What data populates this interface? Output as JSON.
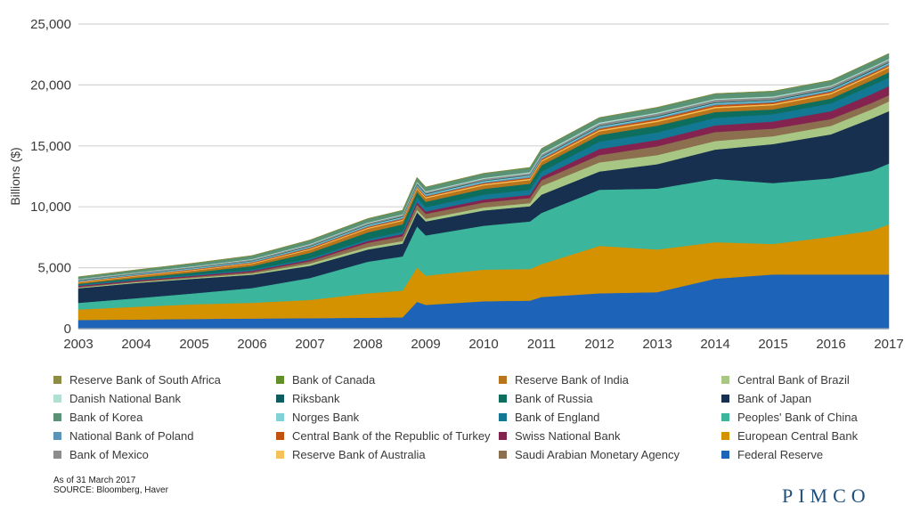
{
  "chart_data": {
    "type": "area",
    "stacked": true,
    "title": "",
    "xlabel": "",
    "ylabel": "Billions ($)",
    "ylim": [
      0,
      25000
    ],
    "yticks": [
      0,
      5000,
      10000,
      15000,
      20000,
      25000
    ],
    "ytick_labels": [
      "0",
      "5,000",
      "10,000",
      "15,000",
      "20,000",
      "25,000"
    ],
    "xlim": [
      2003,
      2017
    ],
    "xtick_labels": [
      "2003",
      "2004",
      "2005",
      "2006",
      "2007",
      "2008",
      "2009",
      "2010",
      "2011",
      "2012",
      "2013",
      "2014",
      "2015",
      "2016",
      "2017"
    ],
    "grid": "horizontal",
    "legend_position": "bottom",
    "x": [
      2003,
      2004,
      2005,
      2006,
      2007,
      2008,
      2008.6,
      2008.85,
      2009,
      2010,
      2010.8,
      2011,
      2012,
      2013,
      2014,
      2015,
      2016,
      2016.7,
      2017
    ],
    "series": [
      {
        "name": "Federal Reserve",
        "color": "#1d63b8",
        "values": [
          720,
          750,
          800,
          830,
          860,
          900,
          930,
          2200,
          1950,
          2250,
          2300,
          2600,
          2900,
          3000,
          4100,
          4450,
          4450,
          4450,
          4450
        ]
      },
      {
        "name": "European Central Bank",
        "color": "#d49100",
        "values": [
          850,
          1050,
          1200,
          1300,
          1500,
          2000,
          2200,
          2800,
          2400,
          2600,
          2600,
          2700,
          3900,
          3500,
          3000,
          2500,
          3100,
          3600,
          4100
        ]
      },
      {
        "name": "Peoples' Bank of China",
        "color": "#3bb59c",
        "values": [
          550,
          700,
          900,
          1200,
          1800,
          2600,
          2800,
          3400,
          3300,
          3600,
          3900,
          4200,
          4600,
          5000,
          5200,
          5000,
          4800,
          4900,
          5000
        ]
      },
      {
        "name": "Bank of Japan",
        "color": "#17304f",
        "values": [
          1200,
          1250,
          1200,
          1100,
          1000,
          1000,
          1050,
          1150,
          1150,
          1250,
          1250,
          1500,
          1500,
          2000,
          2400,
          3200,
          3600,
          4300,
          4300
        ]
      },
      {
        "name": "Central Bank of Brazil",
        "color": "#a9c784",
        "values": [
          60,
          70,
          80,
          100,
          180,
          200,
          210,
          210,
          220,
          250,
          260,
          700,
          750,
          750,
          700,
          650,
          700,
          750,
          800
        ]
      },
      {
        "name": "Saudi Arabian Monetary Agency",
        "color": "#8b6f4e",
        "values": [
          50,
          60,
          80,
          120,
          200,
          350,
          400,
          420,
          400,
          410,
          420,
          480,
          600,
          720,
          740,
          620,
          560,
          520,
          510
        ]
      },
      {
        "name": "Swiss National Bank",
        "color": "#852350",
        "values": [
          90,
          90,
          95,
          100,
          110,
          150,
          180,
          200,
          200,
          240,
          260,
          280,
          500,
          520,
          540,
          580,
          640,
          720,
          750
        ]
      },
      {
        "name": "Bank of England",
        "color": "#127894",
        "values": [
          80,
          80,
          85,
          90,
          120,
          150,
          200,
          380,
          350,
          400,
          410,
          430,
          600,
          620,
          620,
          600,
          640,
          720,
          700
        ]
      },
      {
        "name": "Bank of Russia",
        "color": "#0e6e5e",
        "values": [
          80,
          120,
          180,
          300,
          450,
          550,
          600,
          450,
          450,
          480,
          500,
          520,
          540,
          560,
          480,
          400,
          400,
          420,
          430
        ]
      },
      {
        "name": "Reserve Bank of India",
        "color": "#b8751b",
        "values": [
          100,
          130,
          160,
          180,
          260,
          300,
          290,
          270,
          280,
          290,
          300,
          300,
          310,
          310,
          320,
          340,
          360,
          370,
          380
        ]
      },
      {
        "name": "Reserve Bank of Australia",
        "color": "#f7c15a",
        "values": [
          50,
          50,
          55,
          60,
          70,
          80,
          85,
          90,
          90,
          95,
          100,
          100,
          100,
          110,
          110,
          100,
          100,
          100,
          100
        ]
      },
      {
        "name": "Central Bank of the Republic of Turkey",
        "color": "#c2500f",
        "values": [
          30,
          40,
          45,
          60,
          80,
          80,
          80,
          80,
          80,
          90,
          100,
          100,
          110,
          130,
          140,
          120,
          110,
          110,
          110
        ]
      },
      {
        "name": "National Bank of Poland",
        "color": "#5a94b7",
        "values": [
          40,
          40,
          45,
          50,
          60,
          70,
          70,
          70,
          70,
          80,
          90,
          90,
          100,
          100,
          100,
          100,
          100,
          110,
          110
        ]
      },
      {
        "name": "Norges Bank",
        "color": "#80d1d8",
        "values": [
          40,
          45,
          50,
          50,
          60,
          70,
          70,
          80,
          80,
          80,
          80,
          80,
          80,
          80,
          80,
          70,
          70,
          70,
          70
        ]
      },
      {
        "name": "Riksbank",
        "color": "#0d5c60",
        "values": [
          30,
          30,
          35,
          35,
          40,
          45,
          50,
          70,
          60,
          50,
          50,
          60,
          60,
          60,
          60,
          60,
          70,
          70,
          70
        ]
      },
      {
        "name": "Bank of Mexico",
        "color": "#8c8c8c",
        "values": [
          70,
          75,
          80,
          90,
          100,
          110,
          115,
          120,
          120,
          130,
          140,
          150,
          170,
          190,
          200,
          190,
          180,
          180,
          180
        ]
      },
      {
        "name": "Danish National Bank",
        "color": "#b1dfd3",
        "values": [
          40,
          40,
          45,
          50,
          60,
          60,
          60,
          70,
          70,
          80,
          90,
          90,
          100,
          90,
          80,
          90,
          80,
          80,
          80
        ]
      },
      {
        "name": "Bank of Korea",
        "color": "#5a9276",
        "values": [
          150,
          180,
          220,
          260,
          300,
          300,
          300,
          330,
          330,
          350,
          360,
          380,
          380,
          400,
          400,
          400,
          400,
          420,
          420
        ]
      },
      {
        "name": "Bank of Canada",
        "color": "#61902a",
        "values": [
          15,
          15,
          15,
          15,
          15,
          15,
          15,
          15,
          15,
          15,
          15,
          15,
          15,
          15,
          15,
          15,
          15,
          15,
          15
        ]
      },
      {
        "name": "Reserve Bank of South Africa",
        "color": "#8c8c44",
        "values": [
          15,
          15,
          15,
          15,
          15,
          15,
          15,
          15,
          15,
          15,
          15,
          15,
          15,
          15,
          15,
          15,
          15,
          15,
          15
        ]
      }
    ]
  },
  "legend": [
    {
      "label": "Reserve Bank of South Africa",
      "color": "#8c8c44"
    },
    {
      "label": "Bank of Canada",
      "color": "#61902a"
    },
    {
      "label": "Reserve Bank of India",
      "color": "#b8751b"
    },
    {
      "label": "Central Bank of Brazil",
      "color": "#a9c784"
    },
    {
      "label": "Danish National Bank",
      "color": "#b1dfd3"
    },
    {
      "label": "Riksbank",
      "color": "#0d5c60"
    },
    {
      "label": "Bank of Russia",
      "color": "#0e6e5e"
    },
    {
      "label": "Bank of Japan",
      "color": "#17304f"
    },
    {
      "label": "Bank of Korea",
      "color": "#5a9276"
    },
    {
      "label": "Norges Bank",
      "color": "#80d1d8"
    },
    {
      "label": "Bank of England",
      "color": "#127894"
    },
    {
      "label": "Peoples' Bank of China",
      "color": "#3bb59c"
    },
    {
      "label": "National Bank of Poland",
      "color": "#5a94b7"
    },
    {
      "label": "Central Bank of the Republic of Turkey",
      "color": "#c2500f"
    },
    {
      "label": "Swiss National Bank",
      "color": "#852350"
    },
    {
      "label": "European Central Bank",
      "color": "#d49100"
    },
    {
      "label": "Bank of Mexico",
      "color": "#8c8c8c"
    },
    {
      "label": "Reserve Bank of Australia",
      "color": "#f7c15a"
    },
    {
      "label": "Saudi Arabian Monetary Agency",
      "color": "#8b6f4e"
    },
    {
      "label": "Federal Reserve",
      "color": "#1d63b8"
    }
  ],
  "footnote": {
    "as_of": "As of 31 March 2017",
    "source": "SOURCE: Bloomberg, Haver"
  },
  "logo": "PIMCO"
}
